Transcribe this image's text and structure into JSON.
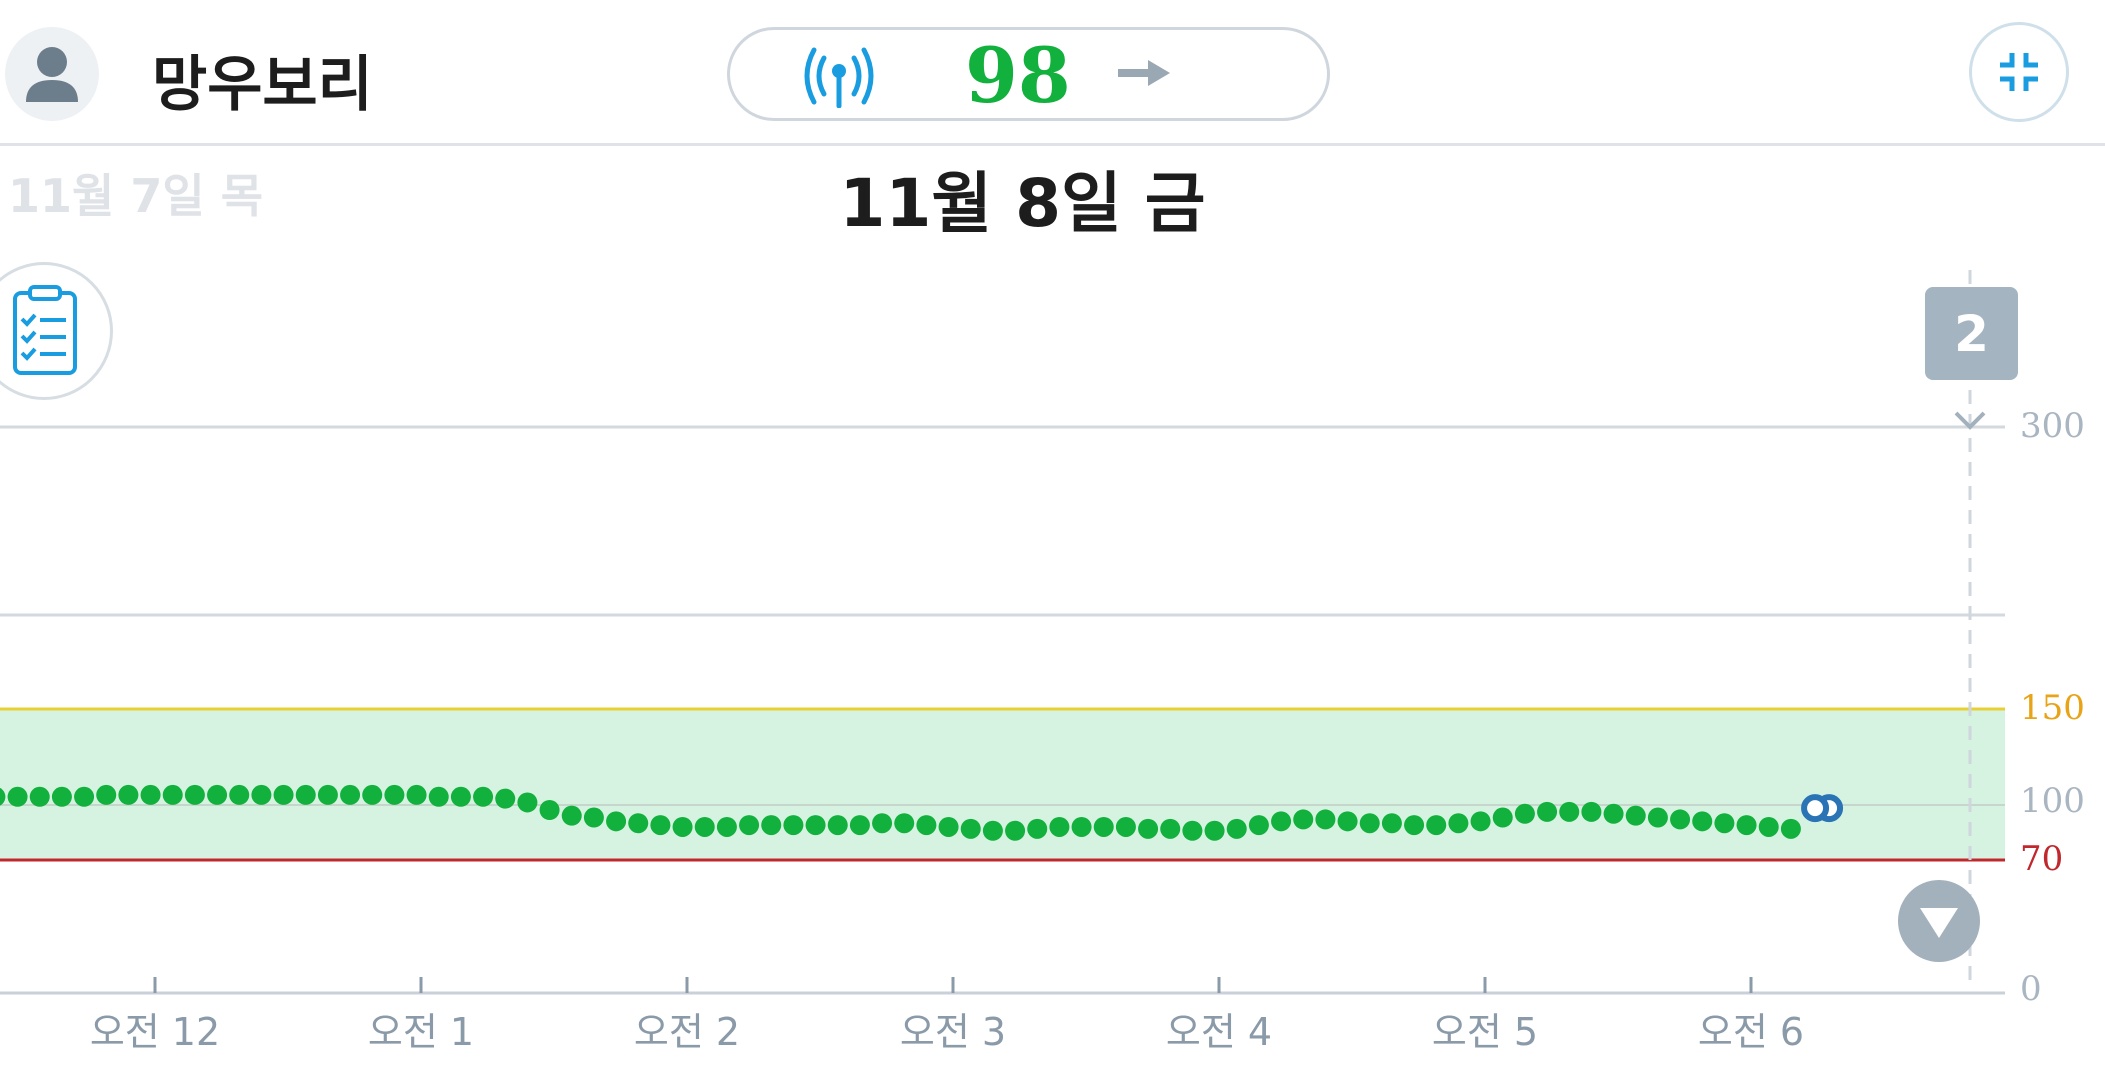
{
  "header": {
    "username": "망우보리",
    "glucose_value": "98",
    "icons": [
      "user-avatar-icon",
      "signal-icon",
      "trend-arrow-right-icon",
      "collapse-icon"
    ]
  },
  "dates": {
    "previous": "11월 7일 목",
    "current": "11월 8일 금"
  },
  "badge": {
    "count": "2"
  },
  "colors": {
    "glucose": "#12b03c",
    "target_band": "#d6f3e2",
    "high_line": "#e8d033",
    "low_line": "#c0282d",
    "accent": "#1a9de0"
  },
  "chart_data": {
    "type": "scatter",
    "x_ticks": [
      "오전 12",
      "오전 1",
      "오전 2",
      "오전 3",
      "오전 4",
      "오전 5",
      "오전 6"
    ],
    "y_ticks": [
      "300",
      "150",
      "100",
      "70",
      "0"
    ],
    "target_range": [
      70,
      150
    ],
    "points_per_hour": 12,
    "x_start_hour": -0.6,
    "values": [
      104,
      104,
      104,
      104,
      104,
      105,
      105,
      105,
      105,
      105,
      105,
      105,
      105,
      105,
      105,
      105,
      105,
      105,
      105,
      105,
      104,
      104,
      104,
      103,
      101,
      97,
      94,
      93,
      91,
      90,
      89,
      88,
      88,
      88,
      89,
      89,
      89,
      89,
      89,
      89,
      90,
      90,
      89,
      88,
      87,
      86,
      86,
      87,
      88,
      88,
      88,
      88,
      87,
      87,
      86,
      86,
      87,
      89,
      91,
      92,
      92,
      91,
      90,
      90,
      89,
      89,
      90,
      91,
      93,
      95,
      96,
      96,
      96,
      95,
      94,
      93,
      92,
      91,
      90,
      89,
      88,
      87
    ],
    "current_value": 98
  }
}
